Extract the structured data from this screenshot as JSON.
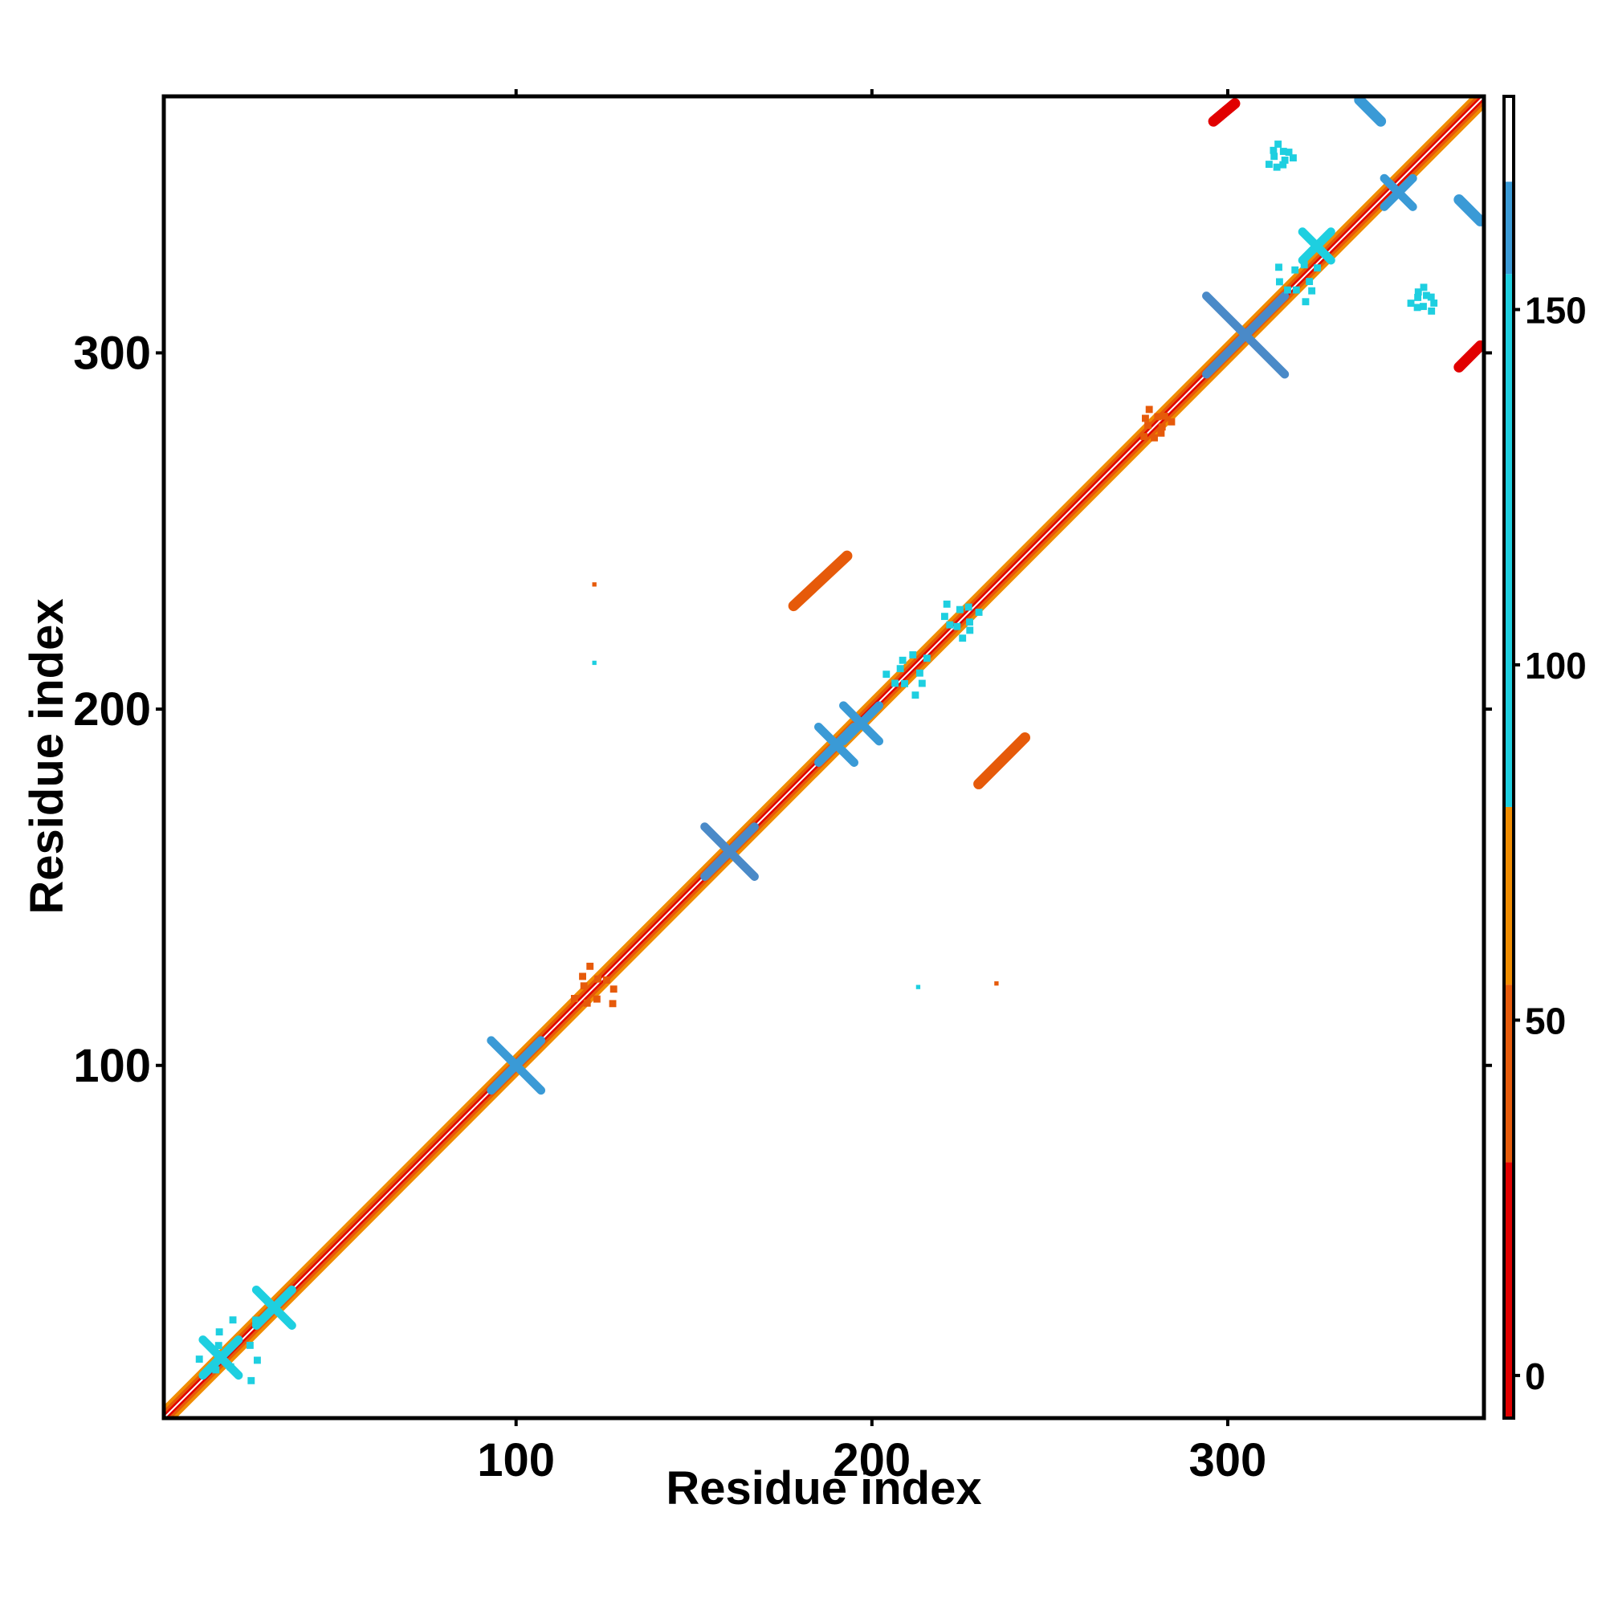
{
  "chart_data": {
    "type": "heatmap",
    "xlabel": "Residue index",
    "ylabel": "Residue index",
    "xlim": [
      1,
      372
    ],
    "ylim": [
      1,
      372
    ],
    "x_ticks": [
      100,
      200,
      300
    ],
    "y_ticks": [
      100,
      200,
      300
    ],
    "x_tick_labels": [
      "100",
      "200",
      "300"
    ],
    "y_tick_labels": [
      "100",
      "200",
      "300"
    ],
    "grid": false,
    "legend": "colorbar-right",
    "colorbar": {
      "range": [
        -6,
        180
      ],
      "ticks": [
        0,
        50,
        100,
        150
      ],
      "tick_labels": [
        "0",
        "50",
        "100",
        "150"
      ],
      "bands": [
        {
          "from": -6,
          "to": 30,
          "color": "#e10000"
        },
        {
          "from": 30,
          "to": 55,
          "color": "#e65a0a"
        },
        {
          "from": 55,
          "to": 80,
          "color": "#f08c00"
        },
        {
          "from": 80,
          "to": 155,
          "color": "#1ecfe0"
        },
        {
          "from": 155,
          "to": 168,
          "color": "#3a9ad6"
        },
        {
          "from": 168,
          "to": 180,
          "color": "#ffffff"
        }
      ]
    },
    "diagonal": {
      "from": 1,
      "to": 372
    },
    "features": [
      {
        "kind": "cross",
        "x": 100,
        "y": 100,
        "half_length": 7,
        "value": 150,
        "color": "#3a9ad6"
      },
      {
        "kind": "cross",
        "x": 160,
        "y": 160,
        "half_length": 7,
        "value": 160,
        "color": "#4a8ac8"
      },
      {
        "kind": "cross",
        "x": 190,
        "y": 190,
        "half_length": 5,
        "value": 150,
        "color": "#3a9ad6"
      },
      {
        "kind": "cross",
        "x": 197,
        "y": 196,
        "half_length": 5,
        "value": 150,
        "color": "#3a9ad6"
      },
      {
        "kind": "cross",
        "x": 305,
        "y": 305,
        "half_length": 11,
        "value": 160,
        "color": "#4a8ac8"
      },
      {
        "kind": "cross",
        "x": 348,
        "y": 345,
        "half_length": 4,
        "value": 150,
        "color": "#3a9ad6"
      },
      {
        "kind": "cross",
        "x": 325,
        "y": 330,
        "half_length": 4,
        "value": 120,
        "color": "#1ecfe0"
      },
      {
        "kind": "cross",
        "x": 32,
        "y": 32,
        "half_length": 5,
        "value": 110,
        "color": "#1ecfe0"
      },
      {
        "kind": "cross",
        "x": 17,
        "y": 18,
        "half_length": 5,
        "value": 110,
        "color": "#1ecfe0"
      },
      {
        "kind": "strand",
        "x1": 178,
        "y1": 229,
        "x2": 193,
        "y2": 243,
        "value": 20,
        "color": "#e65a0a"
      },
      {
        "kind": "strand",
        "x1": 230,
        "y1": 179,
        "x2": 243,
        "y2": 192,
        "value": 20,
        "color": "#e65a0a"
      },
      {
        "kind": "strand",
        "x1": 296,
        "y1": 365,
        "x2": 302,
        "y2": 370,
        "value": 10,
        "color": "#e10000"
      },
      {
        "kind": "strand",
        "x1": 365,
        "y1": 296,
        "x2": 371,
        "y2": 302,
        "value": 10,
        "color": "#e10000"
      },
      {
        "kind": "strand",
        "x1": 337,
        "y1": 371,
        "x2": 343,
        "y2": 365,
        "value": 160,
        "color": "#3a9ad6"
      },
      {
        "kind": "strand",
        "x1": 365,
        "y1": 343,
        "x2": 371,
        "y2": 337,
        "value": 160,
        "color": "#3a9ad6"
      },
      {
        "kind": "cluster",
        "x": 315,
        "y": 355,
        "r": 4,
        "value": 130,
        "color": "#1ecfe0"
      },
      {
        "kind": "cluster",
        "x": 355,
        "y": 315,
        "r": 4,
        "value": 130,
        "color": "#1ecfe0"
      },
      {
        "kind": "cluster",
        "x": 210,
        "y": 210,
        "r": 7,
        "value": 115,
        "color": "#1ecfe0"
      },
      {
        "kind": "cluster",
        "x": 225,
        "y": 225,
        "r": 6,
        "value": 115,
        "color": "#1ecfe0"
      },
      {
        "kind": "cluster",
        "x": 280,
        "y": 280,
        "r": 5,
        "value": 60,
        "color": "#e65a0a"
      },
      {
        "kind": "cluster",
        "x": 122,
        "y": 122,
        "r": 7,
        "value": 60,
        "color": "#e65a0a"
      },
      {
        "kind": "cluster",
        "x": 20,
        "y": 20,
        "r": 11,
        "value": 110,
        "color": "#1ecfe0"
      },
      {
        "kind": "cluster",
        "x": 320,
        "y": 320,
        "r": 7,
        "value": 110,
        "color": "#1ecfe0"
      },
      {
        "kind": "point",
        "x": 122,
        "y": 235,
        "value": 50,
        "color": "#e65a0a"
      },
      {
        "kind": "point",
        "x": 122,
        "y": 213,
        "value": 110,
        "color": "#1ecfe0"
      },
      {
        "kind": "point",
        "x": 213,
        "y": 122,
        "value": 110,
        "color": "#1ecfe0"
      },
      {
        "kind": "point",
        "x": 235,
        "y": 123,
        "value": 50,
        "color": "#e65a0a"
      }
    ]
  }
}
